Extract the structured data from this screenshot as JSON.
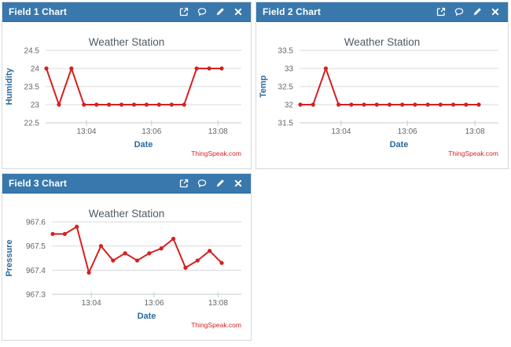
{
  "page": {
    "background": "#ffffff"
  },
  "colors": {
    "header_bg": "#3878ad",
    "header_border": "#2e6b9c",
    "header_text": "#ffffff",
    "panel_border": "#d8d8d8",
    "grid": "#d8d8d8",
    "axis_line": "#c0cdd6",
    "tick_label": "#666666",
    "axis_title": "#2c6a9e",
    "chart_title": "#4d5a66",
    "credits_text": "#d62020",
    "line": "#d62020"
  },
  "panels": [
    {
      "title": "Field 1 Chart",
      "actions": [
        "external-link",
        "comment",
        "edit",
        "close"
      ]
    },
    {
      "title": "Field 2 Chart",
      "actions": [
        "external-link",
        "comment",
        "edit",
        "close"
      ]
    },
    {
      "title": "Field 3 Chart",
      "actions": [
        "external-link",
        "comment",
        "edit",
        "close"
      ]
    }
  ],
  "chart_data": [
    {
      "type": "line",
      "title": "Weather Station",
      "xlabel": "Date",
      "ylabel": "Humidity",
      "credits": "ThingSpeak.com",
      "line_color": "#d62020",
      "grid": true,
      "legend": "none",
      "ylim": [
        22.5,
        24.5
      ],
      "yticks": [
        22.5,
        23,
        23.5,
        24,
        24.5
      ],
      "x_tick_labels": [
        "13:04",
        "13:06",
        "13:08"
      ],
      "x_tick_indices": [
        3.2,
        8.4,
        13.7
      ],
      "values": [
        24,
        23,
        24,
        23,
        23,
        23,
        23,
        23,
        23,
        23,
        23,
        23,
        24,
        24,
        24
      ]
    },
    {
      "type": "line",
      "title": "Weather Station",
      "xlabel": "Date",
      "ylabel": "Temp",
      "credits": "ThingSpeak.com",
      "line_color": "#d62020",
      "grid": true,
      "legend": "none",
      "ylim": [
        31.5,
        33.5
      ],
      "yticks": [
        31.5,
        32,
        32.5,
        33,
        33.5
      ],
      "x_tick_labels": [
        "13:04",
        "13:06",
        "13:08"
      ],
      "x_tick_indices": [
        3.2,
        8.4,
        13.7
      ],
      "values": [
        32,
        32,
        33,
        32,
        32,
        32,
        32,
        32,
        32,
        32,
        32,
        32,
        32,
        32,
        32
      ]
    },
    {
      "type": "line",
      "title": "Weather Station",
      "xlabel": "Date",
      "ylabel": "Pressure",
      "credits": "ThingSpeak.com",
      "line_color": "#d62020",
      "grid": true,
      "legend": "none",
      "ylim": [
        967.3,
        967.6
      ],
      "yticks": [
        967.3,
        967.4,
        967.5,
        967.6
      ],
      "x_tick_labels": [
        "13:04",
        "13:06",
        "13:08"
      ],
      "x_tick_indices": [
        3.2,
        8.4,
        13.7
      ],
      "values": [
        967.55,
        967.55,
        967.58,
        967.39,
        967.5,
        967.44,
        967.47,
        967.44,
        967.47,
        967.49,
        967.53,
        967.41,
        967.44,
        967.48,
        967.43
      ]
    }
  ]
}
